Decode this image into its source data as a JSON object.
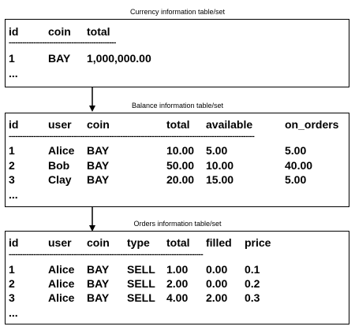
{
  "currency": {
    "title": "Currency information table/set",
    "headers": [
      "id",
      "coin",
      "total"
    ],
    "rows": [
      [
        "1",
        "BAY",
        "1,000,000.00"
      ]
    ],
    "ellipsis": "...",
    "divider": "------------------------------------------------"
  },
  "balance": {
    "title": "Balance information table/set",
    "headers": [
      "id",
      "user",
      "coin",
      "total",
      "available",
      "on_orders"
    ],
    "rows": [
      [
        "1",
        "Alice",
        "BAY",
        "10.00",
        "5.00",
        "5.00"
      ],
      [
        "2",
        "Bob",
        "BAY",
        "50.00",
        "10.00",
        "40.00"
      ],
      [
        "3",
        "Clay",
        "BAY",
        "20.00",
        "15.00",
        "5.00"
      ]
    ],
    "ellipsis": "...",
    "divider": "--------------------------------------------------------------------------------------------------------------"
  },
  "orders": {
    "title": "Orders information table/set",
    "headers": [
      "id",
      "user",
      "coin",
      "type",
      "total",
      "filled",
      "price"
    ],
    "rows": [
      [
        "1",
        "Alice",
        "BAY",
        "SELL",
        "1.00",
        "0.00",
        "0.1"
      ],
      [
        "2",
        "Alice",
        "BAY",
        "SELL",
        "2.00",
        "0.00",
        "0.2"
      ],
      [
        "3",
        "Alice",
        "BAY",
        "SELL",
        "4.00",
        "2.00",
        "0.3"
      ]
    ],
    "ellipsis": "...",
    "divider": "---------------------------------------------------------------------------------------"
  }
}
